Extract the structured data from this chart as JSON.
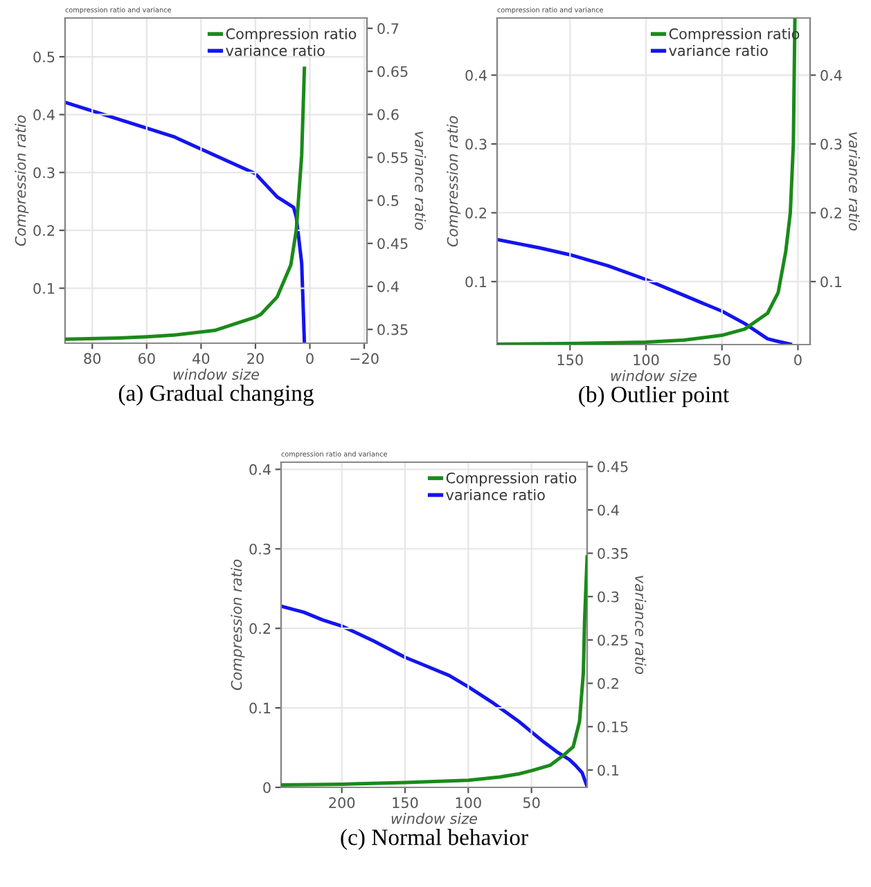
{
  "chart_data": [
    {
      "type": "line",
      "title": "compression ratio and variance",
      "xlabel": "window size",
      "ylabel": "Compression ratio",
      "y2label": "variance ratio",
      "annotations": [
        "(a) Gradual changing"
      ],
      "xlim": [
        90,
        -21
      ],
      "xticks": [
        80,
        60,
        40,
        20,
        0,
        {
          "value": -20,
          "label": "−20"
        }
      ],
      "ylim": [
        0.005,
        0.567
      ],
      "yticks": [
        0.1,
        0.2,
        0.3,
        0.4,
        0.5
      ],
      "y2lim": [
        0.334,
        0.712
      ],
      "y2ticks": [
        0.35,
        0.4,
        0.45,
        0.5,
        0.55,
        0.6,
        0.65,
        0.7
      ],
      "grid": true,
      "legend": "top right",
      "series": [
        {
          "name": "Compression ratio",
          "color": "#1a8a1a",
          "x": [
            90,
            70,
            60,
            50,
            35,
            20,
            18,
            12,
            7,
            5,
            3,
            2
          ],
          "values": [
            0.012,
            0.014,
            0.016,
            0.019,
            0.027,
            0.05,
            0.055,
            0.085,
            0.14,
            0.2,
            0.33,
            0.48
          ]
        },
        {
          "name": "variance ratio",
          "color": "#1414f0",
          "axis": "y2",
          "x": [
            90,
            50,
            20,
            12,
            6,
            5,
            3,
            2
          ],
          "values": [
            0.614,
            0.574,
            0.531,
            0.504,
            0.492,
            0.481,
            0.427,
            0.334
          ]
        }
      ]
    },
    {
      "type": "line",
      "title": "compression ratio and variance",
      "xlabel": "window size",
      "ylabel": "Compression ratio",
      "y2label": "variance ratio",
      "annotations": [
        "(b) Outlier point"
      ],
      "xlim": [
        198,
        -8
      ],
      "xticks": [
        150,
        100,
        50,
        0
      ],
      "ylim": [
        0.0085,
        0.483
      ],
      "yticks": [
        0.1,
        0.2,
        0.3,
        0.4
      ],
      "y2lim": [
        0.0085,
        0.483
      ],
      "y2ticks": [
        0.1,
        0.2,
        0.3,
        0.4
      ],
      "grid": true,
      "legend": "top right",
      "series": [
        {
          "name": "Compression ratio",
          "color": "#1a8a1a",
          "x": [
            198,
            150,
            100,
            75,
            50,
            35,
            20,
            13,
            8,
            5,
            3,
            2
          ],
          "values": [
            0.009,
            0.01,
            0.012,
            0.015,
            0.022,
            0.031,
            0.054,
            0.084,
            0.144,
            0.2,
            0.3,
            0.48
          ]
        },
        {
          "name": "variance ratio",
          "color": "#1414f0",
          "axis": "y2",
          "x": [
            198,
            170,
            150,
            125,
            100,
            75,
            50,
            35,
            20,
            15,
            5
          ],
          "values": [
            0.161,
            0.149,
            0.139,
            0.123,
            0.103,
            0.08,
            0.057,
            0.039,
            0.017,
            0.014,
            0.009
          ]
        }
      ]
    },
    {
      "type": "line",
      "title": "compression ratio and variance",
      "xlabel": "window size",
      "ylabel": "Compression ratio",
      "y2label": "variance ratio",
      "annotations": [
        "(c) Normal behavior"
      ],
      "xlim": [
        248,
        6
      ],
      "xticks": [
        200,
        150,
        100,
        50
      ],
      "ylim": [
        0,
        0.409
      ],
      "yticks": [
        0,
        0.1,
        0.2,
        0.3,
        0.4
      ],
      "y2lim": [
        0.08,
        0.455
      ],
      "y2ticks": [
        0.1,
        0.15,
        0.2,
        0.25,
        0.3,
        0.35,
        0.4,
        0.45
      ],
      "grid": true,
      "legend": "top right",
      "series": [
        {
          "name": "Compression ratio",
          "color": "#1a8a1a",
          "x": [
            248,
            200,
            150,
            100,
            75,
            60,
            50,
            35,
            25,
            17,
            12,
            9,
            8,
            6
          ],
          "values": [
            0.003,
            0.004,
            0.006,
            0.009,
            0.013,
            0.017,
            0.021,
            0.028,
            0.04,
            0.051,
            0.083,
            0.144,
            0.21,
            0.29
          ]
        },
        {
          "name": "variance ratio",
          "color": "#1414f0",
          "axis": "y2",
          "x": [
            248,
            230,
            215,
            200,
            175,
            150,
            135,
            115,
            100,
            80,
            60,
            40,
            30,
            20,
            15,
            10,
            6
          ],
          "values": [
            0.289,
            0.282,
            0.273,
            0.266,
            0.249,
            0.23,
            0.221,
            0.209,
            0.196,
            0.177,
            0.156,
            0.132,
            0.121,
            0.112,
            0.105,
            0.097,
            0.081
          ]
        }
      ]
    }
  ]
}
